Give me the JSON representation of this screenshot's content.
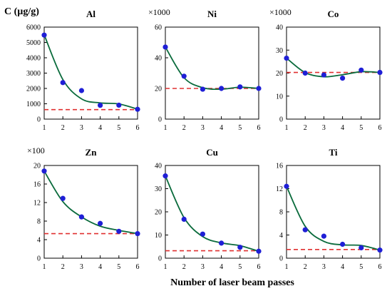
{
  "figure": {
    "ylabel": "C (µg/g)",
    "xlabel": "Number of laser beam passes"
  },
  "colors": {
    "points": "#1f1fd6",
    "fit": "#0a6b3c",
    "reference": "#e03030"
  },
  "chart_data": [
    {
      "type": "scatter",
      "title": "Al",
      "multiplier": "",
      "x": [
        1,
        2,
        3,
        4,
        5,
        6
      ],
      "y": [
        5480,
        2380,
        1860,
        900,
        910,
        640
      ],
      "fit": [
        5500,
        2580,
        1320,
        1060,
        990,
        650
      ],
      "reference": 620,
      "xlim": [
        1,
        6
      ],
      "ylim": [
        0,
        6000
      ],
      "yticks": [
        0,
        1000,
        2000,
        3000,
        4000,
        5000,
        6000
      ],
      "xticks": [
        1,
        2,
        3,
        4,
        5,
        6
      ]
    },
    {
      "type": "scatter",
      "title": "Ni",
      "multiplier": "×1000",
      "x": [
        1,
        2,
        3,
        4,
        5,
        6
      ],
      "y": [
        47,
        28,
        19.5,
        20,
        21,
        20
      ],
      "fit": [
        47,
        27,
        20.5,
        19.5,
        20.8,
        20
      ],
      "reference": 20,
      "xlim": [
        1,
        6
      ],
      "ylim": [
        0,
        60
      ],
      "yticks": [
        0,
        20,
        40,
        60
      ],
      "xticks": [
        1,
        2,
        3,
        4,
        5,
        6
      ]
    },
    {
      "type": "scatter",
      "title": "Co",
      "multiplier": "×1000",
      "x": [
        1,
        2,
        3,
        4,
        5,
        6
      ],
      "y": [
        26.5,
        20,
        19.2,
        17.8,
        21.3,
        20.3
      ],
      "fit": [
        26.5,
        20.2,
        18.4,
        19.3,
        20.6,
        20.3
      ],
      "reference": 20.3,
      "xlim": [
        1,
        6
      ],
      "ylim": [
        0,
        40
      ],
      "yticks": [
        0,
        10,
        20,
        30,
        40
      ],
      "xticks": [
        1,
        2,
        3,
        4,
        5,
        6
      ]
    },
    {
      "type": "scatter",
      "title": "Zn",
      "multiplier": "×100",
      "x": [
        1,
        2,
        3,
        4,
        5,
        6
      ],
      "y": [
        18.8,
        12.9,
        8.9,
        7.5,
        5.8,
        5.3
      ],
      "fit": [
        18.8,
        12.2,
        8.9,
        6.9,
        6.0,
        5.3
      ],
      "reference": 5.3,
      "xlim": [
        1,
        6
      ],
      "ylim": [
        0,
        20
      ],
      "yticks": [
        0,
        4,
        8,
        12,
        16,
        20
      ],
      "xticks": [
        1,
        2,
        3,
        4,
        5,
        6
      ]
    },
    {
      "type": "scatter",
      "title": "Cu",
      "multiplier": "",
      "x": [
        1,
        2,
        3,
        4,
        5,
        6
      ],
      "y": [
        35.5,
        16.8,
        10.4,
        6.5,
        4.7,
        3.0
      ],
      "fit": [
        35.5,
        17.5,
        9.3,
        6.6,
        5.4,
        3.0
      ],
      "reference": 3.2,
      "xlim": [
        1,
        6
      ],
      "ylim": [
        0,
        40
      ],
      "yticks": [
        0,
        10,
        20,
        30,
        40
      ],
      "xticks": [
        1,
        2,
        3,
        4,
        5,
        6
      ]
    },
    {
      "type": "scatter",
      "title": "Ti",
      "multiplier": "",
      "x": [
        1,
        2,
        3,
        4,
        5,
        6
      ],
      "y": [
        12.4,
        4.9,
        3.8,
        2.4,
        1.8,
        1.4
      ],
      "fit": [
        12.4,
        5.5,
        2.9,
        2.3,
        2.2,
        1.4
      ],
      "reference": 1.5,
      "xlim": [
        1,
        6
      ],
      "ylim": [
        0,
        16
      ],
      "yticks": [
        0,
        4,
        8,
        12,
        16
      ],
      "xticks": [
        1,
        2,
        3,
        4,
        5,
        6
      ]
    }
  ]
}
